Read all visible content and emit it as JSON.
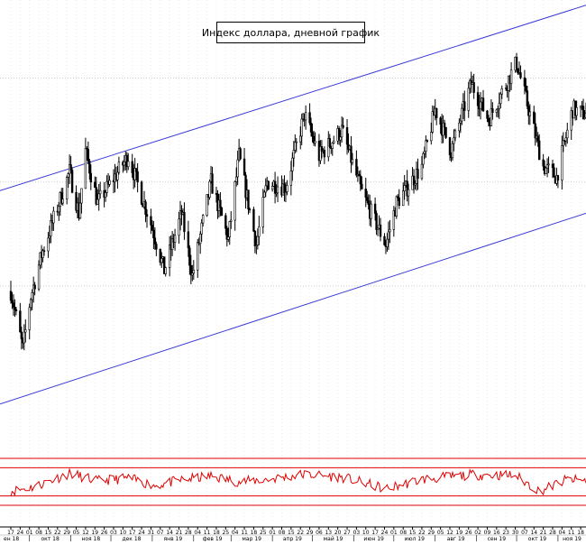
{
  "chart_data": {
    "type": "candlestick",
    "title": "Индекс доллара, дневной график",
    "xlabel": "",
    "ylabel": "",
    "grid": true,
    "date_range": [
      "2018-09-17",
      "2019-11-22"
    ],
    "price_range": [
      92.0,
      100.5
    ],
    "colors": {
      "candles": "#000000",
      "channel": "#3b3bd6",
      "oscillator": "#e00000",
      "grid": "#cccccc",
      "axis": "#000000"
    },
    "channel": {
      "upper": [
        [
          "2018-09-17",
          96.9
        ],
        [
          "2019-11-22",
          100.4
        ]
      ],
      "lower": [
        [
          "2018-09-17",
          92.8
        ],
        [
          "2019-11-22",
          96.4
        ]
      ]
    },
    "price_waypoints": [
      [
        "2018-09-17",
        94.9
      ],
      [
        "2018-09-26",
        93.8
      ],
      [
        "2018-10-02",
        94.8
      ],
      [
        "2018-10-10",
        95.6
      ],
      [
        "2018-10-31",
        97.2
      ],
      [
        "2018-11-07",
        96.4
      ],
      [
        "2018-11-12",
        97.6
      ],
      [
        "2018-11-21",
        96.6
      ],
      [
        "2018-12-14",
        97.5
      ],
      [
        "2018-12-31",
        96.2
      ],
      [
        "2019-01-10",
        95.3
      ],
      [
        "2019-01-23",
        96.4
      ],
      [
        "2019-01-31",
        95.2
      ],
      [
        "2019-02-14",
        97.0
      ],
      [
        "2019-02-27",
        95.9
      ],
      [
        "2019-03-07",
        97.5
      ],
      [
        "2019-03-20",
        95.8
      ],
      [
        "2019-03-28",
        97.0
      ],
      [
        "2019-04-11",
        96.9
      ],
      [
        "2019-04-25",
        98.3
      ],
      [
        "2019-05-06",
        97.5
      ],
      [
        "2019-05-23",
        98.0
      ],
      [
        "2019-06-07",
        96.8
      ],
      [
        "2019-06-25",
        95.8
      ],
      [
        "2019-07-03",
        96.6
      ],
      [
        "2019-07-22",
        97.3
      ],
      [
        "2019-08-01",
        98.4
      ],
      [
        "2019-08-13",
        97.6
      ],
      [
        "2019-08-28",
        98.9
      ],
      [
        "2019-09-10",
        98.2
      ],
      [
        "2019-10-01",
        99.3
      ],
      [
        "2019-10-10",
        98.4
      ],
      [
        "2019-10-21",
        97.3
      ],
      [
        "2019-10-31",
        97.1
      ],
      [
        "2019-11-12",
        98.4
      ],
      [
        "2019-11-22",
        98.3
      ]
    ],
    "oscillator": {
      "waypoints": [
        [
          "2018-09-17",
          30
        ],
        [
          "2018-10-05",
          40
        ],
        [
          "2018-10-31",
          68
        ],
        [
          "2018-11-21",
          52
        ],
        [
          "2018-12-14",
          58
        ],
        [
          "2019-01-03",
          42
        ],
        [
          "2019-01-25",
          55
        ],
        [
          "2019-02-14",
          62
        ],
        [
          "2019-03-07",
          50
        ],
        [
          "2019-03-28",
          55
        ],
        [
          "2019-04-25",
          66
        ],
        [
          "2019-05-23",
          60
        ],
        [
          "2019-06-25",
          35
        ],
        [
          "2019-07-22",
          55
        ],
        [
          "2019-08-28",
          65
        ],
        [
          "2019-09-30",
          64
        ],
        [
          "2019-10-18",
          30
        ],
        [
          "2019-11-08",
          55
        ],
        [
          "2019-11-22",
          52
        ]
      ],
      "level_lines": [
        100,
        80,
        20,
        0
      ]
    },
    "day_labels": [
      "17",
      "24",
      "01",
      "08",
      "15",
      "22",
      "29",
      "05",
      "12",
      "19",
      "26",
      "03",
      "10",
      "17",
      "24",
      "31",
      "07",
      "14",
      "21",
      "28",
      "04",
      "11",
      "18",
      "25",
      "04",
      "11",
      "18",
      "25",
      "01",
      "08",
      "15",
      "22",
      "29",
      "06",
      "13",
      "20",
      "27",
      "03",
      "10",
      "17",
      "24",
      "01",
      "08",
      "15",
      "22",
      "29",
      "05",
      "12",
      "19",
      "26",
      "02",
      "09",
      "16",
      "23",
      "30",
      "07",
      "14",
      "21",
      "28",
      "04",
      "11",
      "18"
    ],
    "month_labels": [
      "ен 18",
      "окт 18",
      "ноя 18",
      "дек 18",
      "янв 19",
      "фев 19",
      "мар 19",
      "апр 19",
      "май 19",
      "июн 19",
      "июл 19",
      "авг 19",
      "сен 19",
      "окт 19",
      "ноя 19"
    ]
  }
}
